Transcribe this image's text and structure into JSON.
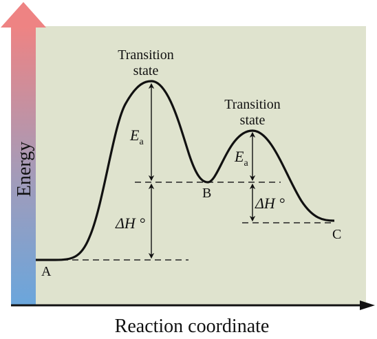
{
  "diagram": {
    "axis": {
      "y_label": "Energy",
      "x_label": "Reaction coordinate"
    },
    "points": {
      "a": "A",
      "b": "B",
      "c": "C"
    },
    "transition_states": [
      {
        "line1": "Transition",
        "line2": "state"
      },
      {
        "line1": "Transition",
        "line2": "state"
      }
    ],
    "activation_energy": {
      "symbol": "E",
      "subscript": "a"
    },
    "enthalpy_change": {
      "symbol": "ΔH",
      "degree": "°"
    },
    "colors": {
      "plot_background": "#dfe3ce",
      "energy_arrow_top": "#ee8383",
      "energy_arrow_bottom": "#6aa6dc",
      "curve": "#111111"
    }
  }
}
